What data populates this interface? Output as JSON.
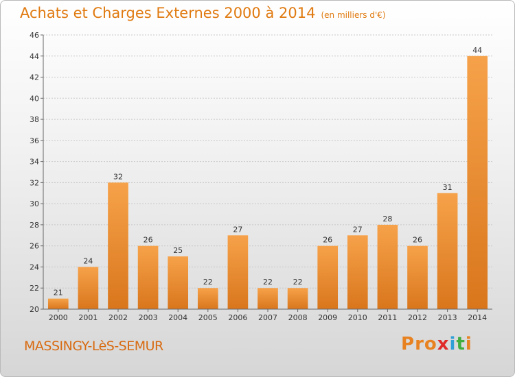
{
  "header": {
    "title": "Achats et Charges Externes 2000 à 2014",
    "unit": "(en milliers d'€)"
  },
  "footer": {
    "city": "MASSINGY-LèS-SEMUR",
    "logo": [
      "P",
      "r",
      "o",
      "x",
      "i",
      "t",
      "i"
    ]
  },
  "colors": {
    "bar_light": "#f6a24a",
    "bar_dark": "#d9761c",
    "title": "#e07a10",
    "logo": [
      "#e8811f",
      "#e8811f",
      "#e8811f",
      "#e02a2a",
      "#2f9fd8",
      "#3fae3f",
      "#e8811f"
    ]
  },
  "chart_data": {
    "type": "bar",
    "title": "Achats et Charges Externes 2000 à 2014",
    "categories": [
      "2000",
      "2001",
      "2002",
      "2003",
      "2004",
      "2005",
      "2006",
      "2007",
      "2008",
      "2009",
      "2010",
      "2011",
      "2012",
      "2013",
      "2014"
    ],
    "values": [
      21,
      24,
      32,
      26,
      25,
      22,
      27,
      22,
      22,
      26,
      27,
      28,
      26,
      31,
      44
    ],
    "ylim": [
      20,
      46
    ],
    "yticks": [
      20,
      22,
      24,
      26,
      28,
      30,
      32,
      34,
      36,
      38,
      40,
      42,
      44,
      46
    ],
    "grid": true,
    "xlabel": "",
    "ylabel": ""
  }
}
